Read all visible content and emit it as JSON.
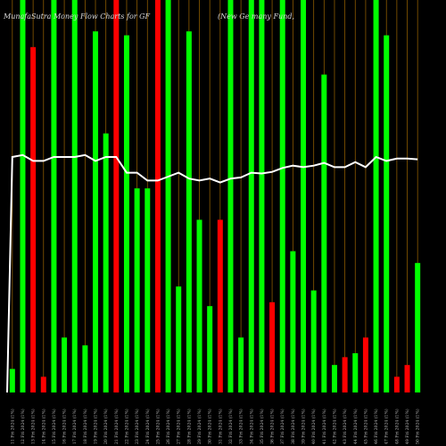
{
  "chart_data": {
    "type": "bar",
    "title_left": "MunafaSutra  Money Flow  Charts for GF",
    "title_right": "(New  Ge                              many Fund,",
    "ylim": [
      0,
      100
    ],
    "bar_colors": {
      "up": "#00ff00",
      "down": "#ff0000",
      "separator": "#8b5a00",
      "line": "#ffffff"
    },
    "categories": [
      "11 Fri 2024 (1%)",
      "12 Fri 2024 (1%)",
      "13 Fri 2024 (1%)",
      "14 Fri 2024 (1%)",
      "15 Fri 2024 (1%)",
      "16 Fri 2024 (1%)",
      "17 Fri 2024 (1%)",
      "18 Fri 2024 (1%)",
      "19 Fri 2024 (1%)",
      "20 Fri 2024 (1%)",
      "21 Fri 2024 (1%)",
      "22 Fri 2024 (1%)",
      "23 Fri 2024 (1%)",
      "24 Fri 2024 (1%)",
      "25 Fri 2024 (1%)",
      "26 Fri 2024 (1%)",
      "27 Fri 2024 (1%)",
      "28 Fri 2024 (1%)",
      "29 Fri 2024 (1%)",
      "30 Fri 2024 (1%)",
      "31 Fri 2024 (1%)",
      "32 Fri 2024 (1%)",
      "33 Fri 2024 (1%)",
      "34 Fri 2024 (1%)",
      "35 Fri 2024 (1%)",
      "36 Fri 2024 (1%)",
      "37 Fri 2024 (1%)",
      "38 Fri 2024 (1%)",
      "39 Fri 2024 (1%)",
      "40 Fri 2024 (1%)",
      "41 Fri 2024 (1%)",
      "42 Fri 2024 (1%)",
      "43 Fri 2024 (1%)",
      "44 Fri 2024 (1%)",
      "45 Fri 2024 (1%)",
      "46 Fri 2024 (1%)",
      "47 Fri 2024 (1%)",
      "48 Fri 2024 (1%)",
      "49 Fri 2024 (1%)",
      "50 Fri 2024 (1%)"
    ],
    "values": [
      6,
      100,
      88,
      4,
      100,
      14,
      100,
      12,
      92,
      66,
      100,
      91,
      52,
      52,
      100,
      100,
      27,
      92,
      44,
      22,
      44,
      100,
      14,
      100,
      100,
      23,
      100,
      36,
      100,
      26,
      81,
      7,
      9,
      10,
      14,
      100,
      91,
      4,
      7,
      33
    ],
    "directions": [
      "up",
      "up",
      "down",
      "down",
      "up",
      "up",
      "up",
      "up",
      "up",
      "up",
      "down",
      "up",
      "up",
      "up",
      "down",
      "up",
      "up",
      "up",
      "up",
      "up",
      "down",
      "up",
      "up",
      "up",
      "up",
      "down",
      "up",
      "up",
      "up",
      "up",
      "up",
      "up",
      "down",
      "up",
      "down",
      "up",
      "up",
      "down",
      "down",
      "up"
    ],
    "line_values": [
      60,
      60.5,
      59,
      59,
      60,
      60,
      60,
      60.5,
      59,
      60,
      60,
      56,
      56,
      54,
      54,
      55,
      56,
      54.5,
      54,
      54.5,
      53.5,
      54.5,
      54.8,
      56,
      55.8,
      56.2,
      57.2,
      57.8,
      57.4,
      57.8,
      58.5,
      57.4,
      57.4,
      58.7,
      57.4,
      60,
      59,
      59.6,
      59.6,
      59.4
    ]
  }
}
